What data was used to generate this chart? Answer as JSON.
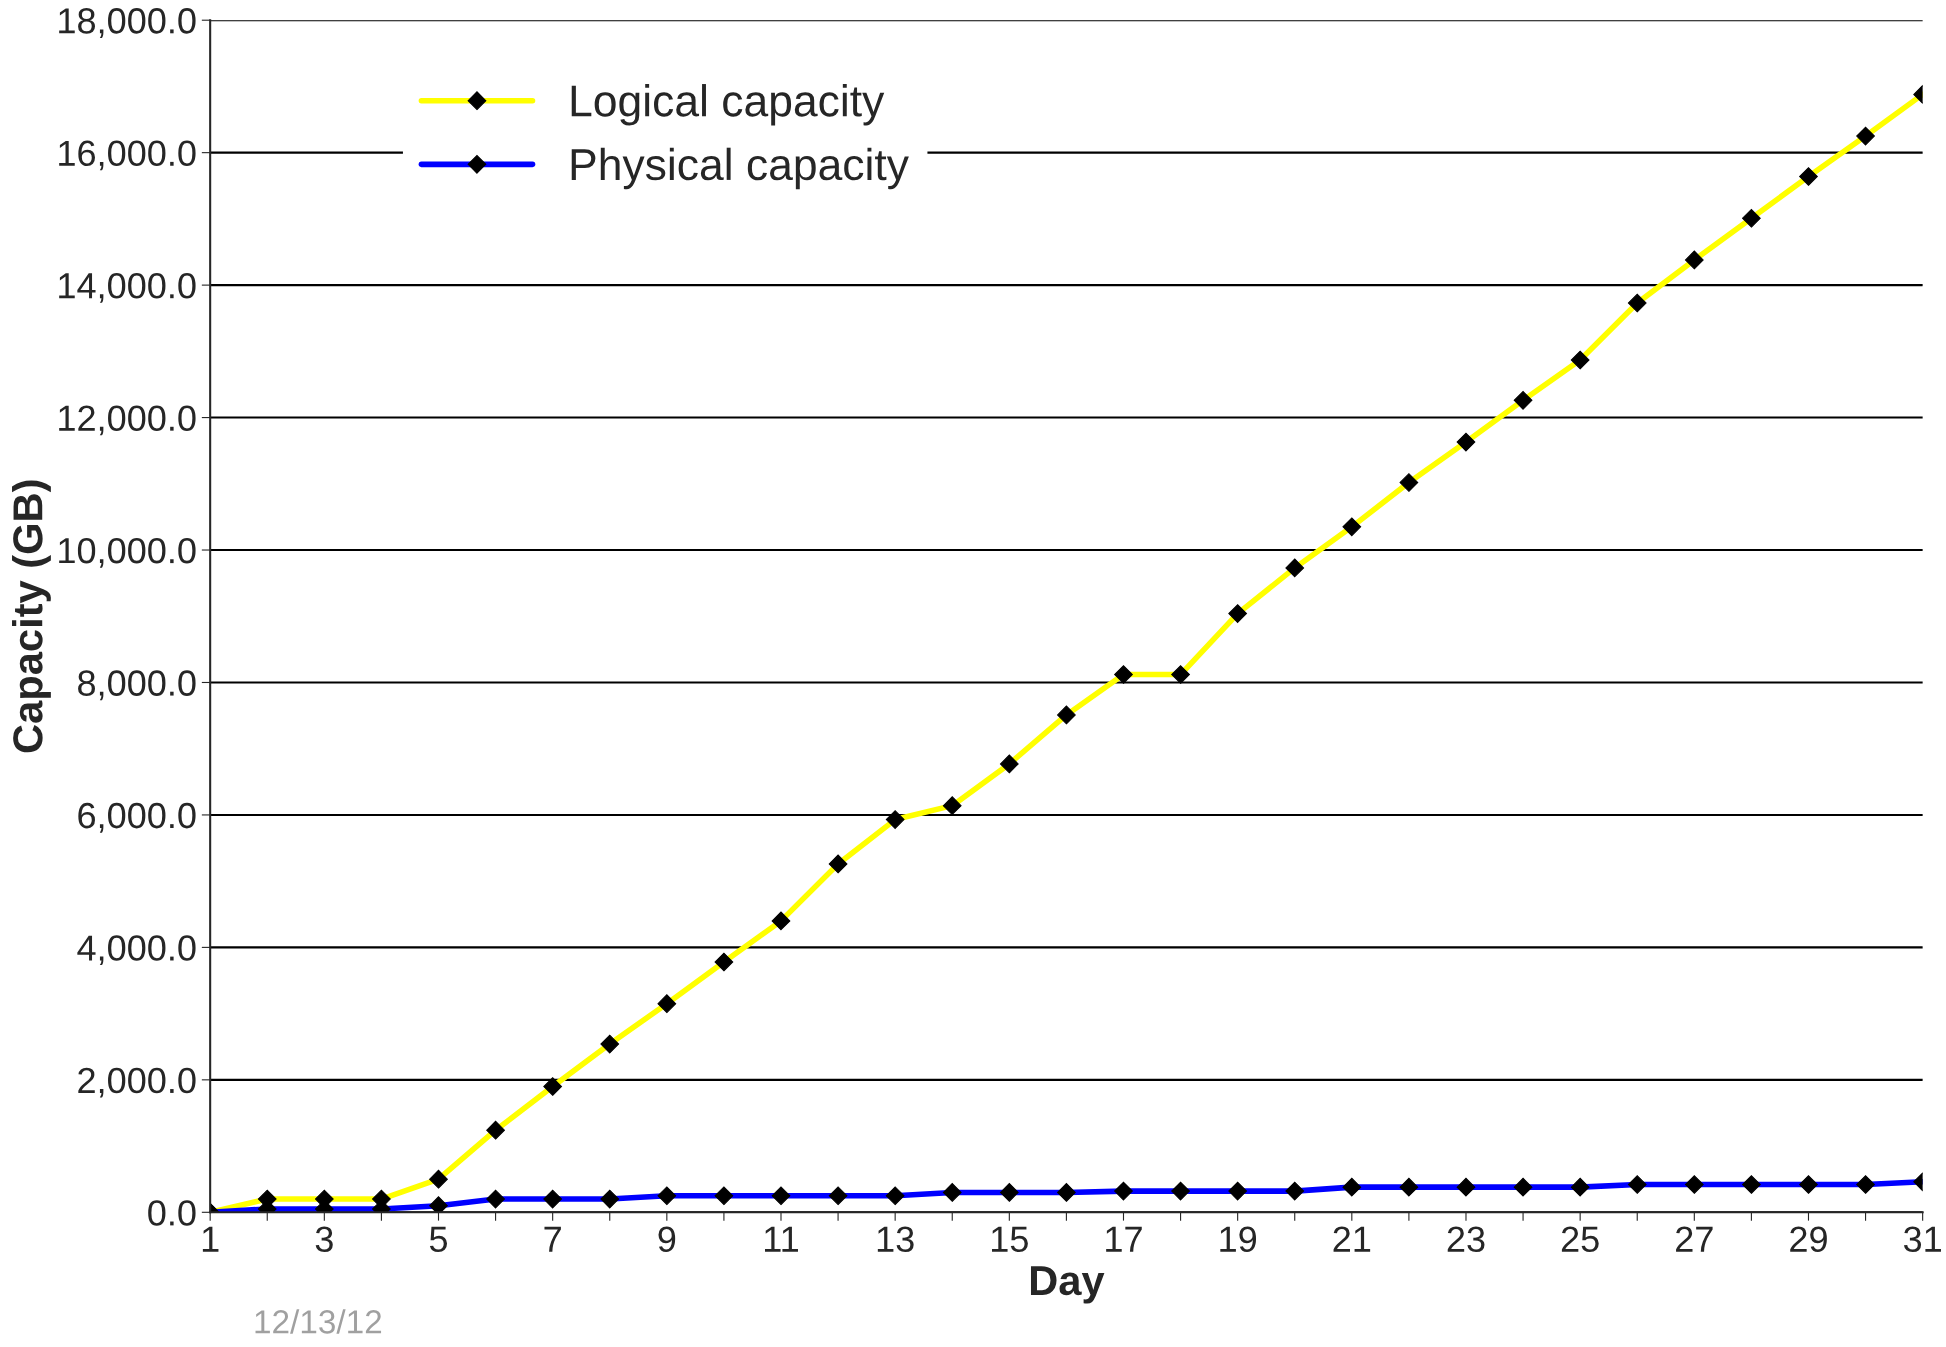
{
  "chart_data": {
    "type": "line",
    "xlabel": "Day",
    "ylabel": "Capacity (GB)",
    "categories": [
      "1",
      null,
      "3",
      null,
      "5",
      null,
      "7",
      null,
      "9",
      null,
      "11",
      null,
      "13",
      null,
      "15",
      null,
      "17",
      null,
      "19",
      null,
      "21",
      null,
      "23",
      null,
      "25",
      null,
      "27",
      null,
      "29",
      null,
      "31"
    ],
    "series": [
      {
        "name": "Logical capacity",
        "color": "#ffff00",
        "values": [
          0,
          200,
          200,
          200,
          500,
          1240,
          1900,
          2540,
          3150,
          3780,
          4400,
          5260,
          5930,
          6140,
          6770,
          7510,
          8120,
          8120,
          9040,
          9730,
          10350,
          11020,
          11630,
          12260,
          12870,
          13730,
          14380,
          15010,
          15640,
          16250,
          16880
        ]
      },
      {
        "name": "Physical capacity",
        "color": "#0000ff",
        "values": [
          0,
          50,
          50,
          50,
          100,
          200,
          200,
          200,
          250,
          250,
          250,
          250,
          250,
          300,
          300,
          300,
          320,
          320,
          320,
          320,
          380,
          380,
          380,
          380,
          380,
          420,
          420,
          420,
          420,
          420,
          460
        ]
      }
    ],
    "ylim": [
      0,
      18000
    ],
    "yticks": [
      {
        "value": 0,
        "label": "0.0"
      },
      {
        "value": 2000,
        "label": "2,000.0"
      },
      {
        "value": 4000,
        "label": "4,000.0"
      },
      {
        "value": 6000,
        "label": "6,000.0"
      },
      {
        "value": 8000,
        "label": "8,000.0"
      },
      {
        "value": 10000,
        "label": "10,000.0"
      },
      {
        "value": 12000,
        "label": "12,000.0"
      },
      {
        "value": 14000,
        "label": "14,000.0"
      },
      {
        "value": 16000,
        "label": "16,000.0"
      },
      {
        "value": 18000,
        "label": "18,000.0"
      }
    ],
    "grid": "y",
    "legend": "top left",
    "marker": "diamond",
    "annotations": [
      "12/13/12"
    ]
  }
}
